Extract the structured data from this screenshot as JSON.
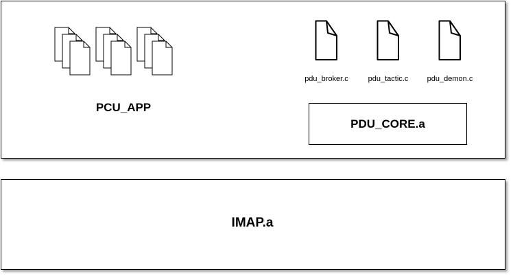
{
  "diagram": {
    "app_label": "PCU_APP",
    "core_lib_label": "PDU_CORE.a",
    "imap_lib_label": "IMAP.a",
    "source_files": [
      {
        "name": "pdu_broker.c",
        "icon": "file-icon"
      },
      {
        "name": "pdu_tactic.c",
        "icon": "file-icon"
      },
      {
        "name": "pdu_demon.c",
        "icon": "file-icon"
      }
    ],
    "app_file_stacks": [
      {
        "icon": "multiple-files-icon"
      },
      {
        "icon": "multiple-files-icon"
      },
      {
        "icon": "multiple-files-icon"
      }
    ]
  }
}
